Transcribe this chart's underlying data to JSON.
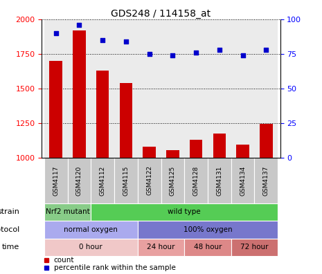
{
  "title": "GDS248 / 114158_at",
  "samples": [
    "GSM4117",
    "GSM4120",
    "GSM4112",
    "GSM4115",
    "GSM4122",
    "GSM4125",
    "GSM4128",
    "GSM4131",
    "GSM4134",
    "GSM4137"
  ],
  "counts": [
    1700,
    1920,
    1630,
    1540,
    1080,
    1055,
    1130,
    1175,
    1095,
    1245
  ],
  "percentiles": [
    90,
    96,
    85,
    84,
    75,
    74,
    76,
    78,
    74,
    78
  ],
  "ylim_left": [
    1000,
    2000
  ],
  "ylim_right": [
    0,
    100
  ],
  "yticks_left": [
    1000,
    1250,
    1500,
    1750,
    2000
  ],
  "yticks_right": [
    0,
    25,
    50,
    75,
    100
  ],
  "bar_color": "#cc0000",
  "dot_color": "#0000cc",
  "sample_bg_color": "#c8c8c8",
  "sample_divider_color": "#aaaaaa",
  "strain_groups": [
    {
      "label": "Nrf2 mutant",
      "start": 0,
      "end": 2,
      "color": "#88cc88"
    },
    {
      "label": "wild type",
      "start": 2,
      "end": 10,
      "color": "#55cc55"
    }
  ],
  "protocol_groups": [
    {
      "label": "normal oxygen",
      "start": 0,
      "end": 4,
      "color": "#aaaaee"
    },
    {
      "label": "100% oxygen",
      "start": 4,
      "end": 10,
      "color": "#7777cc"
    }
  ],
  "time_groups": [
    {
      "label": "0 hour",
      "start": 0,
      "end": 4,
      "color": "#f0c8c8"
    },
    {
      "label": "24 hour",
      "start": 4,
      "end": 6,
      "color": "#e8a0a0"
    },
    {
      "label": "48 hour",
      "start": 6,
      "end": 8,
      "color": "#dd8888"
    },
    {
      "label": "72 hour",
      "start": 8,
      "end": 10,
      "color": "#cc7070"
    }
  ],
  "legend_items": [
    {
      "label": "count",
      "color": "#cc0000"
    },
    {
      "label": "percentile rank within the sample",
      "color": "#0000cc"
    }
  ],
  "row_labels": [
    "strain",
    "protocol",
    "time"
  ],
  "arrow_color": "#888888"
}
